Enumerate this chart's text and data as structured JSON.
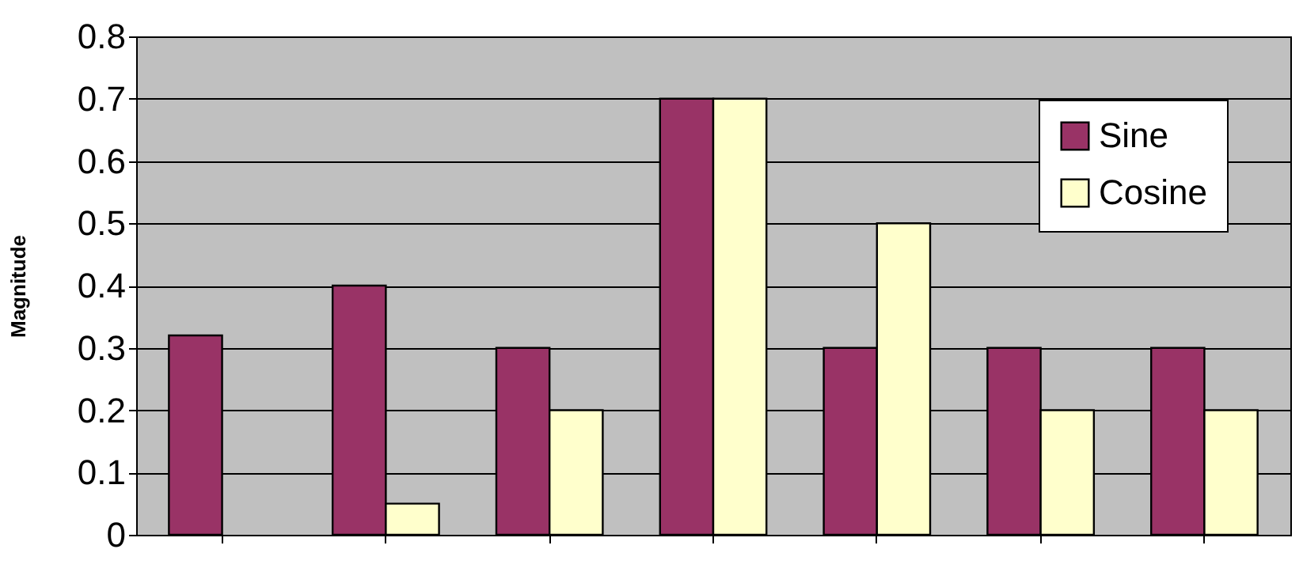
{
  "chart_data": {
    "type": "bar",
    "ylabel": "Magnitude",
    "categories": [
      null,
      null,
      null,
      null,
      null,
      null,
      null
    ],
    "series": [
      {
        "name": "Sine",
        "color": "#993366",
        "values": [
          0.32,
          0.4,
          0.3,
          0.7,
          0.3,
          0.3,
          0.3
        ]
      },
      {
        "name": "Cosine",
        "color": "#ffffcc",
        "values": [
          null,
          0.05,
          0.2,
          0.7,
          0.5,
          0.2,
          0.2
        ]
      }
    ],
    "ylim": [
      0,
      0.8
    ],
    "yticks": [
      0,
      0.1,
      0.2,
      0.3,
      0.4,
      0.5,
      0.6,
      0.7,
      0.8
    ],
    "grid": "y",
    "legend": "top right",
    "tick_labels": "y"
  }
}
